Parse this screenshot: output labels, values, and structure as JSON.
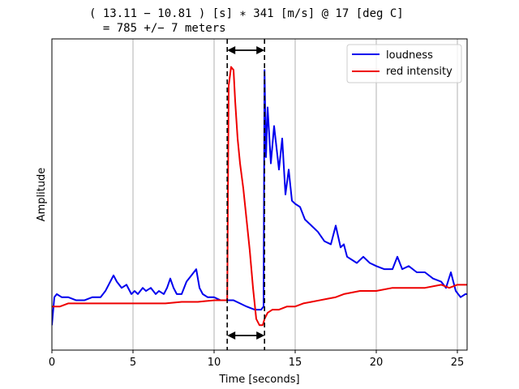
{
  "chart_data": {
    "type": "line",
    "title_lines": [
      "( 13.11 − 10.81 ) [s] ∗ 341 [m/s] @ 17 [deg C]",
      "  = 785 +/− 7 meters"
    ],
    "xlabel": "Time [seconds]",
    "ylabel": "Amplitude",
    "xlim": [
      0,
      25.6
    ],
    "ylim": [
      0,
      1
    ],
    "x_ticks": [
      0,
      5,
      10,
      15,
      20,
      25
    ],
    "x_tick_labels": [
      "0",
      "5",
      "10",
      "15",
      "20",
      "25"
    ],
    "y_tick_labels_shown": false,
    "grid": "vertical",
    "legend_position": "top-right",
    "colors": {
      "loudness": "#0000ee",
      "red_intensity": "#ee0000",
      "markers": "#000000",
      "grid": "#b0b0b0"
    },
    "series": [
      {
        "name": "loudness",
        "color": "#0000ee",
        "x": [
          0,
          0.15,
          0.3,
          0.6,
          1,
          1.5,
          2,
          2.5,
          3,
          3.3,
          3.6,
          3.8,
          4,
          4.3,
          4.6,
          4.9,
          5.1,
          5.3,
          5.6,
          5.8,
          6.1,
          6.4,
          6.6,
          6.9,
          7.1,
          7.3,
          7.5,
          7.7,
          8,
          8.3,
          8.6,
          8.9,
          9.1,
          9.3,
          9.6,
          10,
          10.4,
          10.81,
          11.2,
          11.6,
          12,
          12.5,
          12.9,
          13.05,
          13.11,
          13.2,
          13.3,
          13.5,
          13.7,
          14,
          14.2,
          14.4,
          14.6,
          14.8,
          15,
          15.3,
          15.6,
          16,
          16.4,
          16.8,
          17.2,
          17.5,
          17.8,
          18,
          18.2,
          18.5,
          18.8,
          19.2,
          19.6,
          20,
          20.5,
          21,
          21.3,
          21.6,
          22,
          22.5,
          23,
          23.5,
          24,
          24.3,
          24.6,
          24.9,
          25.2,
          25.5,
          25.6
        ],
        "values": [
          0.08,
          0.17,
          0.18,
          0.17,
          0.17,
          0.16,
          0.16,
          0.17,
          0.17,
          0.19,
          0.22,
          0.24,
          0.22,
          0.2,
          0.21,
          0.18,
          0.19,
          0.18,
          0.2,
          0.19,
          0.2,
          0.18,
          0.19,
          0.18,
          0.2,
          0.23,
          0.2,
          0.18,
          0.18,
          0.22,
          0.24,
          0.26,
          0.2,
          0.18,
          0.17,
          0.17,
          0.16,
          0.16,
          0.16,
          0.15,
          0.14,
          0.13,
          0.13,
          0.14,
          0.9,
          0.62,
          0.78,
          0.6,
          0.72,
          0.58,
          0.68,
          0.5,
          0.58,
          0.48,
          0.47,
          0.46,
          0.42,
          0.4,
          0.38,
          0.35,
          0.34,
          0.4,
          0.33,
          0.34,
          0.3,
          0.29,
          0.28,
          0.3,
          0.28,
          0.27,
          0.26,
          0.26,
          0.3,
          0.26,
          0.27,
          0.25,
          0.25,
          0.23,
          0.22,
          0.2,
          0.25,
          0.19,
          0.17,
          0.18,
          0.18
        ]
      },
      {
        "name": "red intensity",
        "color": "#ee0000",
        "x": [
          0,
          0.5,
          1,
          2,
          3,
          4,
          5,
          6,
          7,
          8,
          9,
          10,
          10.4,
          10.81,
          10.9,
          11.05,
          11.2,
          11.3,
          11.45,
          11.6,
          11.8,
          12,
          12.2,
          12.4,
          12.6,
          12.8,
          13,
          13.11,
          13.3,
          13.6,
          14,
          14.5,
          15,
          15.5,
          16,
          16.5,
          17,
          17.5,
          18,
          19,
          20,
          21,
          22,
          23,
          24,
          24.5,
          25,
          25.6
        ],
        "values": [
          0.14,
          0.14,
          0.15,
          0.15,
          0.15,
          0.15,
          0.15,
          0.15,
          0.15,
          0.155,
          0.155,
          0.16,
          0.16,
          0.16,
          0.85,
          0.91,
          0.9,
          0.8,
          0.68,
          0.6,
          0.52,
          0.42,
          0.32,
          0.2,
          0.1,
          0.08,
          0.08,
          0.1,
          0.12,
          0.13,
          0.13,
          0.14,
          0.14,
          0.15,
          0.155,
          0.16,
          0.165,
          0.17,
          0.18,
          0.19,
          0.19,
          0.2,
          0.2,
          0.2,
          0.21,
          0.2,
          0.21,
          0.21
        ]
      }
    ],
    "markers": {
      "vertical_dashed_lines_x": [
        10.81,
        13.11
      ],
      "arrow_span": [
        10.81,
        13.11
      ]
    }
  }
}
